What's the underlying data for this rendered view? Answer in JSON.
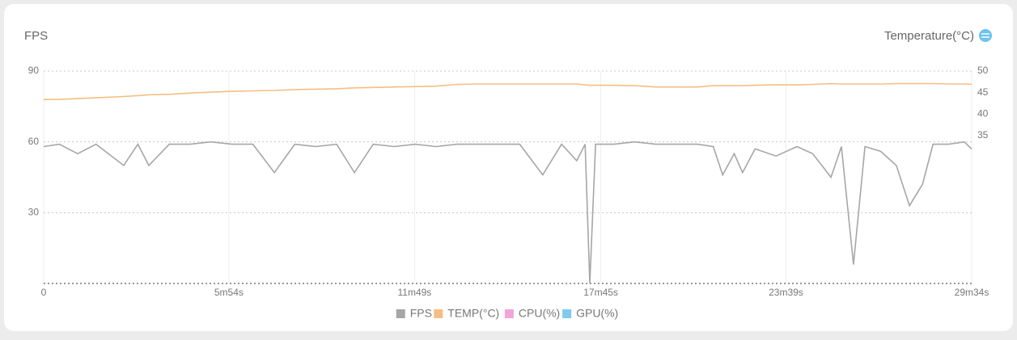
{
  "chart_data": {
    "type": "line",
    "y_label": "FPS",
    "y2_label": "Temperature(°C)",
    "x": [
      0,
      30,
      65,
      100,
      153,
      180,
      201,
      240,
      280,
      320,
      360,
      400,
      441,
      480,
      520,
      560,
      594,
      630,
      670,
      710,
      750,
      790,
      830,
      870,
      910,
      954,
      990,
      1019,
      1035,
      1044,
      1055,
      1090,
      1130,
      1170,
      1210,
      1250,
      1280,
      1298,
      1320,
      1336,
      1360,
      1400,
      1440,
      1470,
      1505,
      1525,
      1548,
      1570,
      1600,
      1630,
      1655,
      1680,
      1700,
      1730,
      1760,
      1774
    ],
    "series": [
      {
        "name": "FPS",
        "color": "#a6a6a6",
        "values": [
          58,
          59,
          55,
          59,
          50,
          59,
          50,
          59,
          59,
          60,
          59,
          59,
          47,
          59,
          58,
          59,
          47,
          59,
          58,
          59,
          58,
          59,
          59,
          59,
          59,
          46,
          59,
          52,
          59,
          0,
          59,
          59,
          60,
          59,
          59,
          59,
          58,
          46,
          55,
          47,
          57,
          54,
          58,
          55,
          45,
          58,
          8,
          58,
          56,
          50,
          33,
          42,
          59,
          59,
          60,
          57
        ]
      },
      {
        "name": "TEMP(°C)",
        "color": "#f5be82",
        "axis": "y2",
        "values": [
          43.4,
          43.4,
          43.6,
          43.8,
          44.1,
          44.3,
          44.5,
          44.6,
          44.9,
          45.1,
          45.3,
          45.4,
          45.5,
          45.7,
          45.8,
          45.9,
          46.1,
          46.2,
          46.3,
          46.4,
          46.5,
          46.9,
          47,
          47,
          47,
          47,
          47,
          47,
          46.8,
          46.7,
          46.7,
          46.7,
          46.6,
          46.3,
          46.3,
          46.3,
          46.6,
          46.6,
          46.6,
          46.6,
          46.7,
          46.8,
          46.8,
          46.9,
          47.1,
          47,
          47,
          47,
          47,
          47.1,
          47.1,
          47.1,
          47.1,
          47,
          47,
          46.9
        ]
      }
    ],
    "inactive_legend": [
      {
        "name": "CPU(%)",
        "color": "#f2a6d8"
      },
      {
        "name": "GPU(%)",
        "color": "#7ecbef"
      }
    ],
    "xlim": [
      0,
      1774
    ],
    "xticks": [
      0,
      {
        "value": 354,
        "label": "5m54s"
      },
      {
        "value": 709,
        "label": "11m49s"
      },
      {
        "value": 1065,
        "label": "17m45s"
      },
      {
        "value": 1419,
        "label": "23m39s"
      },
      {
        "value": 1774,
        "label": "29m34s"
      }
    ],
    "ylim": [
      0,
      90
    ],
    "yticks": [
      30,
      60,
      90
    ],
    "y2lim": [
      0.7,
      50
    ],
    "y2ticks": [
      35,
      40,
      45,
      50
    ],
    "grid": true
  }
}
